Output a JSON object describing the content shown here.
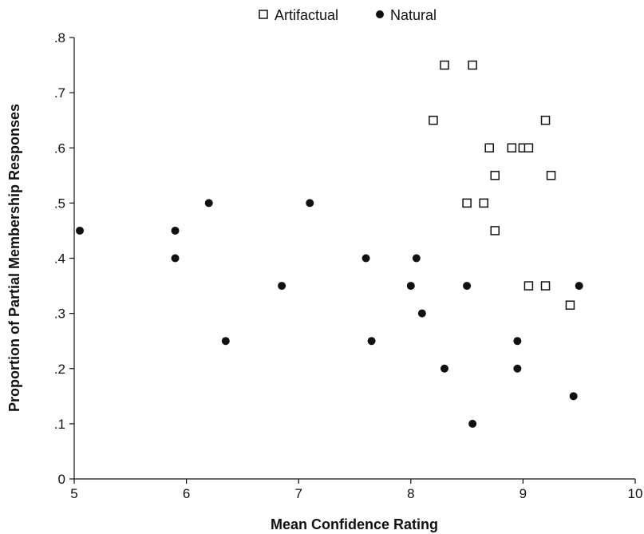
{
  "chart_data": {
    "type": "scatter",
    "xlabel": "Mean Confidence Rating",
    "ylabel": "Proportion of Partial Membership Responses",
    "xlim": [
      5,
      10
    ],
    "ylim": [
      0,
      0.8
    ],
    "x_ticks": [
      5,
      6,
      7,
      8,
      9,
      10
    ],
    "x_tick_labels": [
      "5",
      "6",
      "7",
      "8",
      "9",
      "10"
    ],
    "y_ticks": [
      0,
      0.1,
      0.2,
      0.3,
      0.4,
      0.5,
      0.6,
      0.7,
      0.8
    ],
    "y_tick_labels": [
      "0",
      ".1",
      ".2",
      ".3",
      ".4",
      ".5",
      ".6",
      ".7",
      ".8"
    ],
    "grid": false,
    "legend_position": "top-center",
    "series": [
      {
        "name": "Artifactual",
        "marker": "open-square",
        "color": "#111111",
        "points": [
          [
            8.3,
            0.75
          ],
          [
            8.55,
            0.75
          ],
          [
            8.2,
            0.65
          ],
          [
            9.2,
            0.65
          ],
          [
            8.7,
            0.6
          ],
          [
            8.9,
            0.6
          ],
          [
            9.0,
            0.6
          ],
          [
            9.05,
            0.6
          ],
          [
            8.75,
            0.55
          ],
          [
            9.25,
            0.55
          ],
          [
            8.5,
            0.5
          ],
          [
            8.65,
            0.5
          ],
          [
            8.75,
            0.45
          ],
          [
            9.05,
            0.35
          ],
          [
            9.2,
            0.35
          ],
          [
            9.42,
            0.315
          ]
        ]
      },
      {
        "name": "Natural",
        "marker": "filled-circle",
        "color": "#111111",
        "points": [
          [
            5.05,
            0.45
          ],
          [
            5.9,
            0.45
          ],
          [
            5.9,
            0.4
          ],
          [
            6.2,
            0.5
          ],
          [
            6.35,
            0.25
          ],
          [
            6.85,
            0.35
          ],
          [
            7.1,
            0.5
          ],
          [
            7.6,
            0.4
          ],
          [
            7.65,
            0.25
          ],
          [
            8.0,
            0.35
          ],
          [
            8.05,
            0.4
          ],
          [
            8.1,
            0.3
          ],
          [
            8.3,
            0.2
          ],
          [
            8.5,
            0.35
          ],
          [
            8.55,
            0.1
          ],
          [
            8.95,
            0.25
          ],
          [
            8.95,
            0.2
          ],
          [
            9.45,
            0.15
          ],
          [
            9.5,
            0.35
          ]
        ]
      }
    ]
  }
}
